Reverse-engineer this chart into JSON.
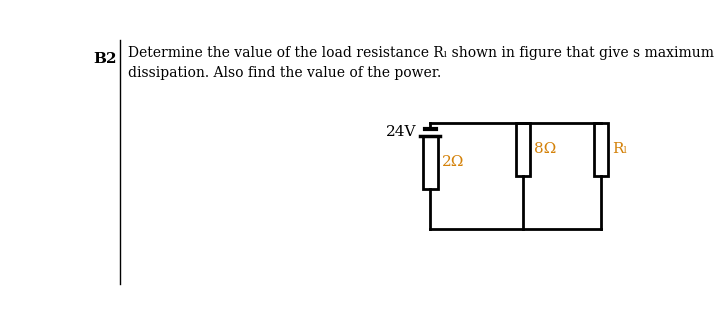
{
  "title_label": "B2",
  "text_line1": "Determine the value of the load resistance Rₗ shown in figure that give s maximum power",
  "text_line2": "dissipation. Also find the value of the power.",
  "voltage_label": "24V",
  "r1_label": "2Ω",
  "r2_label": "8Ω",
  "r3_label": "Rₗ",
  "bg_color": "#ffffff",
  "text_color": "#000000",
  "orange_color": "#d4820a",
  "line_color": "#000000",
  "lw": 2.0,
  "resistor_fill": "#ffffff",
  "fig_width": 7.15,
  "fig_height": 3.21,
  "dpi": 100
}
